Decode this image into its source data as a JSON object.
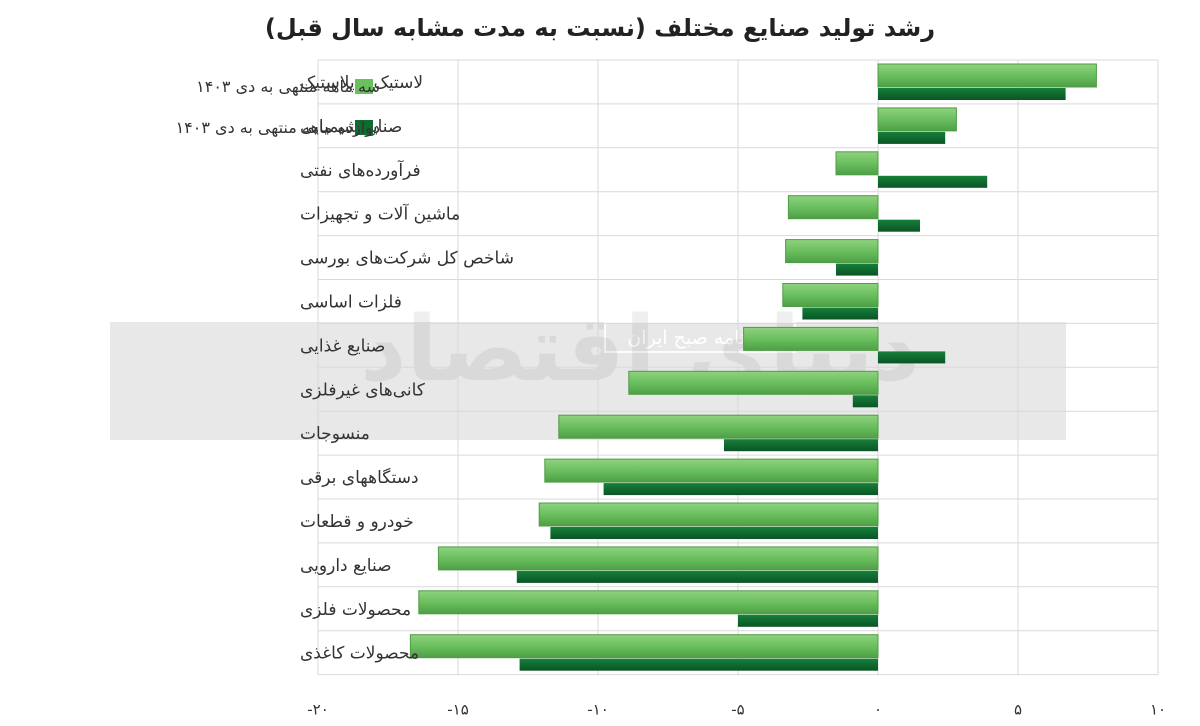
{
  "chart_data": {
    "type": "bar",
    "orientation": "horizontal",
    "title": "رشد تولید صنایع مختلف (نسبت به مدت مشابه سال قبل)",
    "categories": [
      "لاستیک و پلاستیک",
      "صنایع شیمیایی",
      "فرآورده‌های نفتی",
      "ماشین آلات و تجهیزات",
      "شاخص کل شرکت‌های بورسی",
      "فلزات اساسی",
      "صنایع غذایی",
      "کانی‌های غیرفلزی",
      "منسوجات",
      "دستگاههای برقی",
      "خودرو و قطعات",
      "صنایع دارویی",
      "محصولات فلزی",
      "محصولات کاغذی"
    ],
    "series": [
      {
        "name": "سه ماهه منتهی به دی ۱۴۰۳",
        "color": "#6abf5e",
        "values": [
          7.8,
          2.8,
          -1.5,
          -3.2,
          -3.3,
          -3.4,
          -4.8,
          -8.9,
          -11.4,
          -11.9,
          -12.1,
          -15.7,
          -16.4,
          -16.7
        ]
      },
      {
        "name": "دوازده ماهه منتهی به دی ۱۴۰۳",
        "color": "#0f6b2f",
        "values": [
          6.7,
          2.4,
          3.9,
          1.5,
          -1.5,
          -2.7,
          2.4,
          -0.9,
          -5.5,
          -9.8,
          -11.7,
          -12.9,
          -5.0,
          -12.8
        ]
      }
    ],
    "xlim": [
      -20,
      10
    ],
    "xticks": [
      -20,
      -15,
      -10,
      -5,
      0,
      5,
      10
    ],
    "xtick_labels": [
      "-۲۰",
      "-۱۵",
      "-۱۰",
      "-۵",
      "۰",
      "۵",
      "۱۰"
    ],
    "grid": true,
    "legend_position": "top-left"
  },
  "watermark": {
    "text": "روزنامه صبح ایران",
    "logo_text": "دنیای اقتصاد"
  }
}
